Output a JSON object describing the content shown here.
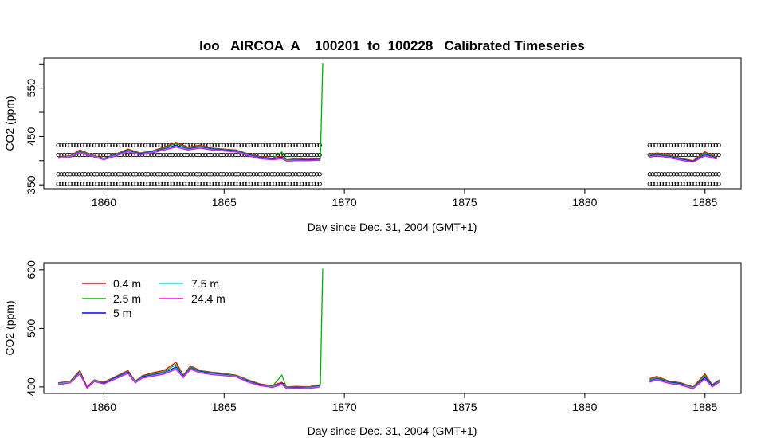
{
  "figure": {
    "title": "loo   AIRCOA  A    100201  to  100228   Calibrated Timeseries"
  },
  "chart_data": [
    {
      "type": "scatter",
      "title": "loo   AIRCOA  A    100201  to  100228   Calibrated Timeseries",
      "xlabel": "Day since Dec. 31, 2004 (GMT+1)",
      "ylabel": "CO2 (ppm)",
      "xlim": [
        1857.5,
        1886.5
      ],
      "ylim": [
        342,
        612
      ],
      "xticks": [
        1860,
        1865,
        1870,
        1875,
        1880,
        1885
      ],
      "yticks": [
        350,
        450,
        550
      ],
      "calibration_levels": [
        352,
        372,
        412,
        432
      ],
      "calibration_points": [
        {
          "x_start": 1858.1,
          "x_end": 1869.0
        },
        {
          "x_start": 1882.7,
          "x_end": 1885.6
        }
      ],
      "series": [
        {
          "name": "0.4 m",
          "color": "#ff0000",
          "x": [
            1858.1,
            1858.6,
            1859.0,
            1859.5,
            1860.0,
            1860.5,
            1861.0,
            1861.5,
            1862.0,
            1862.5,
            1863.0,
            1863.5,
            1864.0,
            1864.5,
            1865.0,
            1865.5,
            1866.0,
            1866.5,
            1867.0,
            1867.4,
            1867.6,
            1868.0,
            1868.5,
            1869.0,
            1882.7,
            1883.0,
            1883.5,
            1884.0,
            1884.5,
            1885.0,
            1885.5
          ],
          "y": [
            408,
            410,
            422,
            412,
            405,
            414,
            424,
            416,
            420,
            428,
            438,
            428,
            432,
            426,
            424,
            422,
            414,
            408,
            405,
            408,
            402,
            404,
            403,
            405,
            413,
            416,
            412,
            405,
            400,
            418,
            407
          ]
        },
        {
          "name": "2.5 m",
          "color": "#00b000",
          "x": [
            1858.1,
            1858.6,
            1859.0,
            1859.5,
            1860.0,
            1860.5,
            1861.0,
            1861.5,
            1862.0,
            1862.5,
            1863.0,
            1863.5,
            1864.0,
            1864.5,
            1865.0,
            1865.5,
            1866.0,
            1866.5,
            1867.0,
            1867.4,
            1867.6,
            1868.0,
            1868.5,
            1869.0,
            1869.05,
            1869.1,
            1882.7,
            1883.0,
            1883.5,
            1884.0,
            1884.5,
            1885.0,
            1885.5
          ],
          "y": [
            407,
            409,
            420,
            411,
            404,
            413,
            422,
            415,
            419,
            426,
            436,
            426,
            430,
            425,
            423,
            421,
            413,
            407,
            404,
            418,
            401,
            403,
            402,
            404,
            500,
            602,
            411,
            414,
            410,
            404,
            399,
            416,
            406
          ]
        },
        {
          "name": "5 m",
          "color": "#0000ff",
          "x": [
            1858.1,
            1858.6,
            1859.0,
            1859.5,
            1860.0,
            1860.5,
            1861.0,
            1861.5,
            1862.0,
            1862.5,
            1863.0,
            1863.5,
            1864.0,
            1864.5,
            1865.0,
            1865.5,
            1866.0,
            1866.5,
            1867.0,
            1867.4,
            1867.6,
            1868.0,
            1868.5,
            1869.0,
            1882.7,
            1883.0,
            1883.5,
            1884.0,
            1884.5,
            1885.0,
            1885.5
          ],
          "y": [
            406,
            408,
            418,
            410,
            403,
            412,
            420,
            414,
            418,
            424,
            432,
            424,
            428,
            424,
            422,
            420,
            412,
            406,
            403,
            406,
            400,
            402,
            401,
            403,
            409,
            412,
            408,
            403,
            398,
            413,
            405
          ]
        },
        {
          "name": "7.5 m",
          "color": "#00e0e0",
          "x": [
            1858.1,
            1858.6,
            1859.0,
            1859.5,
            1860.0,
            1860.5,
            1861.0,
            1861.5,
            1862.0,
            1862.5,
            1863.0,
            1863.5,
            1864.0,
            1864.5,
            1865.0,
            1865.5,
            1866.0,
            1866.5,
            1867.0,
            1867.4,
            1867.6,
            1868.0,
            1868.5,
            1869.0,
            1882.7,
            1883.0,
            1883.5,
            1884.0,
            1884.5,
            1885.0,
            1885.5
          ],
          "y": [
            406,
            408,
            417,
            410,
            403,
            411,
            419,
            413,
            417,
            423,
            430,
            423,
            427,
            423,
            421,
            419,
            411,
            405,
            402,
            405,
            400,
            401,
            400,
            402,
            408,
            411,
            407,
            402,
            397,
            411,
            404
          ]
        },
        {
          "name": "24.4 m",
          "color": "#ff00ff",
          "x": [
            1858.1,
            1858.6,
            1859.0,
            1859.5,
            1860.0,
            1860.5,
            1861.0,
            1861.5,
            1862.0,
            1862.5,
            1863.0,
            1863.5,
            1864.0,
            1864.5,
            1865.0,
            1865.5,
            1866.0,
            1866.5,
            1867.0,
            1867.4,
            1867.6,
            1868.0,
            1868.5,
            1869.0,
            1882.7,
            1883.0,
            1883.5,
            1884.0,
            1884.5,
            1885.0,
            1885.5
          ],
          "y": [
            405,
            407,
            416,
            409,
            402,
            410,
            418,
            412,
            416,
            422,
            428,
            422,
            426,
            422,
            420,
            418,
            410,
            404,
            402,
            404,
            399,
            400,
            400,
            401,
            407,
            410,
            406,
            401,
            397,
            410,
            403
          ]
        }
      ]
    },
    {
      "type": "line",
      "title": "",
      "xlabel": "Day since Dec. 31, 2004 (GMT+1)",
      "ylabel": "CO2 (ppm)",
      "xlim": [
        1857.5,
        1886.5
      ],
      "ylim": [
        389,
        612
      ],
      "xticks": [
        1860,
        1865,
        1870,
        1875,
        1880,
        1885
      ],
      "yticks": [
        400,
        500,
        600
      ],
      "legend": "top-left",
      "series": [
        {
          "name": "0.4 m",
          "color": "#ff0000",
          "x": [
            1858.1,
            1858.6,
            1859.0,
            1859.3,
            1859.6,
            1860.0,
            1860.5,
            1861.0,
            1861.3,
            1861.6,
            1862.0,
            1862.5,
            1863.0,
            1863.3,
            1863.6,
            1864.0,
            1864.5,
            1865.0,
            1865.5,
            1866.0,
            1866.5,
            1867.0,
            1867.4,
            1867.6,
            1868.0,
            1868.5,
            1869.0,
            1882.7,
            1883.0,
            1883.5,
            1884.0,
            1884.5,
            1885.0,
            1885.3,
            1885.6
          ],
          "y": [
            407,
            410,
            428,
            400,
            412,
            408,
            418,
            428,
            410,
            419,
            424,
            428,
            442,
            420,
            436,
            428,
            425,
            423,
            420,
            412,
            405,
            402,
            408,
            400,
            401,
            400,
            404,
            414,
            418,
            410,
            407,
            400,
            422,
            404,
            412
          ]
        },
        {
          "name": "2.5 m",
          "color": "#00b000",
          "x": [
            1858.1,
            1858.6,
            1859.0,
            1859.3,
            1859.6,
            1860.0,
            1860.5,
            1861.0,
            1861.3,
            1861.6,
            1862.0,
            1862.5,
            1863.0,
            1863.3,
            1863.6,
            1864.0,
            1864.5,
            1865.0,
            1865.5,
            1866.0,
            1866.5,
            1867.0,
            1867.4,
            1867.6,
            1868.0,
            1868.5,
            1869.0,
            1869.05,
            1869.1,
            1882.7,
            1883.0,
            1883.5,
            1884.0,
            1884.5,
            1885.0,
            1885.3,
            1885.6
          ],
          "y": [
            406,
            409,
            426,
            399,
            411,
            407,
            417,
            426,
            409,
            418,
            422,
            426,
            438,
            419,
            434,
            427,
            424,
            422,
            419,
            411,
            404,
            401,
            420,
            399,
            400,
            399,
            403,
            505,
            602,
            412,
            416,
            409,
            406,
            399,
            419,
            403,
            411
          ]
        },
        {
          "name": "5 m",
          "color": "#0000ff",
          "x": [
            1858.1,
            1858.6,
            1859.0,
            1859.3,
            1859.6,
            1860.0,
            1860.5,
            1861.0,
            1861.3,
            1861.6,
            1862.0,
            1862.5,
            1863.0,
            1863.3,
            1863.6,
            1864.0,
            1864.5,
            1865.0,
            1865.5,
            1866.0,
            1866.5,
            1867.0,
            1867.4,
            1867.6,
            1868.0,
            1868.5,
            1869.0,
            1882.7,
            1883.0,
            1883.5,
            1884.0,
            1884.5,
            1885.0,
            1885.3,
            1885.6
          ],
          "y": [
            405,
            408,
            424,
            399,
            410,
            406,
            416,
            425,
            408,
            417,
            420,
            424,
            434,
            418,
            432,
            426,
            423,
            421,
            418,
            410,
            403,
            400,
            406,
            398,
            399,
            398,
            402,
            410,
            414,
            408,
            405,
            398,
            416,
            402,
            410
          ]
        },
        {
          "name": "7.5 m",
          "color": "#00e0e0",
          "x": [
            1858.1,
            1858.6,
            1859.0,
            1859.3,
            1859.6,
            1860.0,
            1860.5,
            1861.0,
            1861.3,
            1861.6,
            1862.0,
            1862.5,
            1863.0,
            1863.3,
            1863.6,
            1864.0,
            1864.5,
            1865.0,
            1865.5,
            1866.0,
            1866.5,
            1867.0,
            1867.4,
            1867.6,
            1868.0,
            1868.5,
            1869.0,
            1882.7,
            1883.0,
            1883.5,
            1884.0,
            1884.5,
            1885.0,
            1885.3,
            1885.6
          ],
          "y": [
            405,
            408,
            423,
            398,
            410,
            405,
            415,
            424,
            408,
            416,
            419,
            423,
            432,
            417,
            431,
            425,
            422,
            420,
            418,
            409,
            402,
            400,
            405,
            398,
            398,
            398,
            401,
            409,
            413,
            407,
            404,
            398,
            414,
            401,
            409
          ]
        },
        {
          "name": "24.4 m",
          "color": "#ff00ff",
          "x": [
            1858.1,
            1858.6,
            1859.0,
            1859.3,
            1859.6,
            1860.0,
            1860.5,
            1861.0,
            1861.3,
            1861.6,
            1862.0,
            1862.5,
            1863.0,
            1863.3,
            1863.6,
            1864.0,
            1864.5,
            1865.0,
            1865.5,
            1866.0,
            1866.5,
            1867.0,
            1867.4,
            1867.6,
            1868.0,
            1868.5,
            1869.0,
            1882.7,
            1883.0,
            1883.5,
            1884.0,
            1884.5,
            1885.0,
            1885.3,
            1885.6
          ],
          "y": [
            404,
            407,
            422,
            398,
            409,
            405,
            414,
            423,
            407,
            415,
            418,
            422,
            430,
            416,
            430,
            424,
            421,
            419,
            417,
            408,
            402,
            399,
            404,
            397,
            398,
            397,
            400,
            408,
            412,
            406,
            403,
            397,
            413,
            400,
            408
          ]
        }
      ]
    }
  ]
}
